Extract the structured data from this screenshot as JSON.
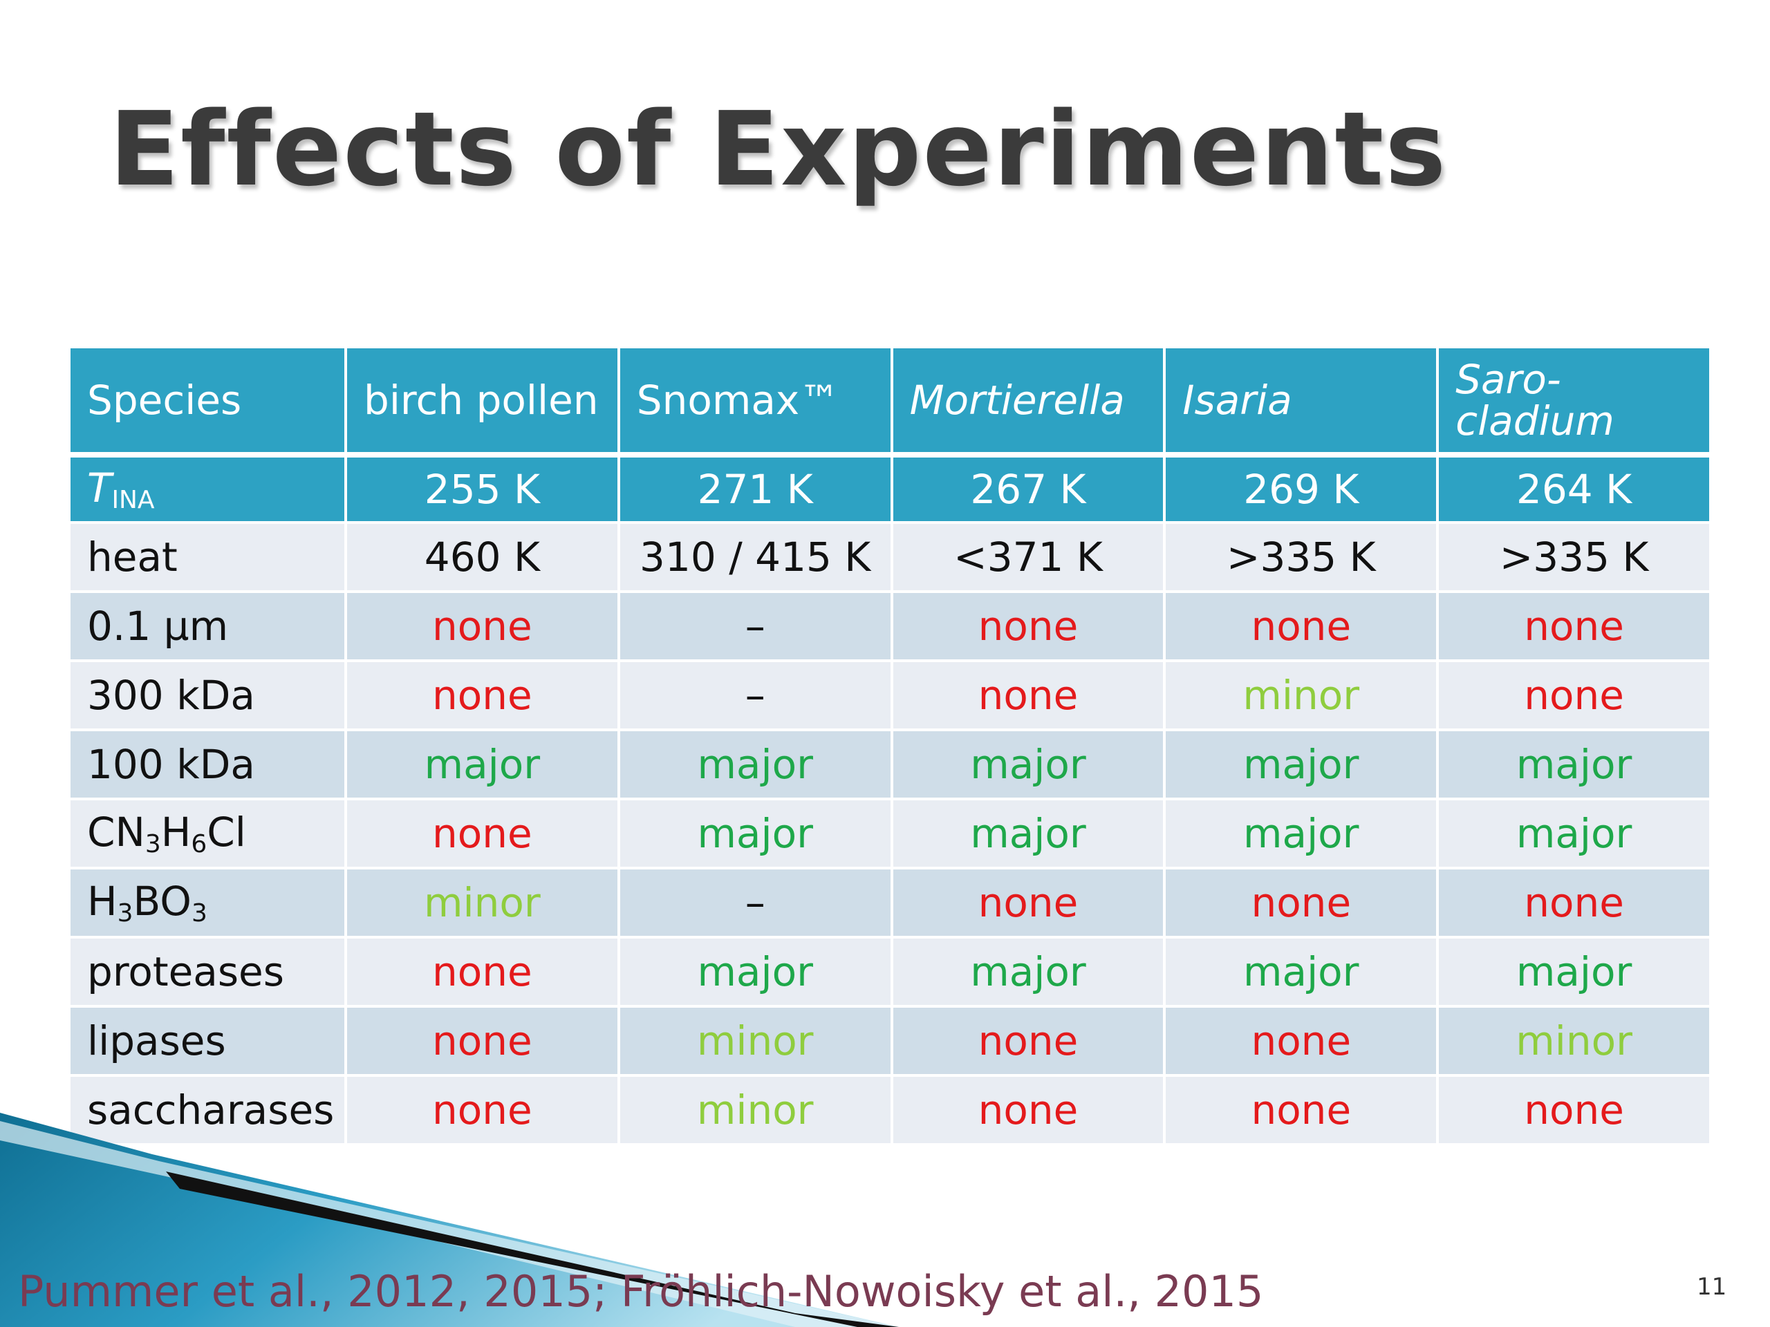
{
  "slide": {
    "title": "Effects of Experiments",
    "citation": "Pummer et al., 2012, 2015; Fröhlich-Nowoisky et al., 2015",
    "page_number": "11"
  },
  "table": {
    "header": {
      "label": "Species",
      "species": [
        "birch pollen",
        "Snomax™",
        "Mortierella",
        "Isaria",
        "Saro-"
      ],
      "species_line2": [
        "",
        "",
        "",
        "",
        "cladium"
      ]
    },
    "tina": {
      "label_main": "T",
      "label_sub": "INA",
      "values": [
        "255 K",
        "271 K",
        "267 K",
        "269 K",
        "264 K"
      ]
    },
    "rows": [
      {
        "label": "heat",
        "values": [
          "460 K",
          "310 / 415 K",
          "<371 K",
          ">335 K",
          ">335 K"
        ]
      },
      {
        "label": "0.1 µm",
        "values": [
          "none",
          "–",
          "none",
          "none",
          "none"
        ]
      },
      {
        "label": "300 kDa",
        "values": [
          "none",
          "–",
          "none",
          "minor",
          "none"
        ]
      },
      {
        "label": "100 kDa",
        "values": [
          "major",
          "major",
          "major",
          "major",
          "major"
        ]
      },
      {
        "label_parts": [
          "CN",
          "3",
          "H",
          "6",
          "Cl"
        ],
        "values": [
          "none",
          "major",
          "major",
          "major",
          "major"
        ]
      },
      {
        "label_parts": [
          "H",
          "3",
          "BO",
          "3"
        ],
        "values": [
          "minor",
          "–",
          "none",
          "none",
          "none"
        ]
      },
      {
        "label": "proteases",
        "values": [
          "none",
          "major",
          "major",
          "major",
          "major"
        ]
      },
      {
        "label": "lipases",
        "values": [
          "none",
          "minor",
          "none",
          "none",
          "minor"
        ]
      },
      {
        "label": "saccharases",
        "values": [
          "none",
          "minor",
          "none",
          "none",
          "none"
        ]
      }
    ]
  },
  "colors": {
    "header_bg": "#2da2c3",
    "none": "#e41a1c",
    "major": "#1ea84a",
    "minor": "#8fcd3e",
    "citation": "#7a3b52"
  }
}
